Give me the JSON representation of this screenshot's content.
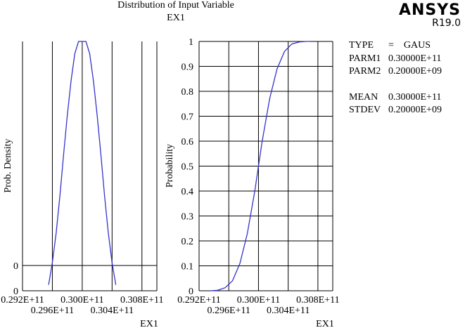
{
  "header": {
    "title": "Distribution of Input Variable",
    "subtitle": "EX1",
    "logo": "ANSYS",
    "version": "R19.0"
  },
  "stats": {
    "type": {
      "label": "TYPE",
      "value": "=    GAUS"
    },
    "parm1": {
      "label": "PARM1",
      "value": "0.30000E+11"
    },
    "parm2": {
      "label": "PARM2",
      "value": "0.20000E+09"
    },
    "mean": {
      "label": "MEAN",
      "value": "0.30000E+11"
    },
    "stdev": {
      "label": "STDEV",
      "value": "0.20000E+09"
    }
  },
  "chart_data": [
    {
      "type": "line",
      "title": "",
      "xlabel": "EX1",
      "ylabel": "Prob. Density",
      "xlim": [
        29200000000.0,
        31000000000.0
      ],
      "ylim": [
        0,
        1
      ],
      "x_tick_labels": [
        "0.292E+11",
        "0.296E+11",
        "0.300E+11",
        "0.304E+11",
        "0.308E+11"
      ],
      "y_tick_labels": [
        "0",
        "0"
      ],
      "series": [
        {
          "color": "#3333cc",
          "x": [
            29550000000.0,
            29600000000.0,
            29650000000.0,
            29700000000.0,
            29750000000.0,
            29800000000.0,
            29850000000.0,
            29900000000.0,
            29950000000.0,
            30000000000.0,
            30050000000.0,
            30100000000.0,
            30150000000.0,
            30200000000.0,
            30250000000.0,
            30300000000.0,
            30350000000.0,
            30400000000.0,
            30450000000.0
          ],
          "y": [
            0.01,
            0.1,
            0.22,
            0.37,
            0.54,
            0.7,
            0.84,
            0.95,
            1.0,
            1.0,
            1.0,
            0.95,
            0.84,
            0.7,
            0.54,
            0.37,
            0.22,
            0.1,
            0.01
          ]
        }
      ],
      "grid": "vertical"
    },
    {
      "type": "line",
      "title": "",
      "xlabel": "EX1",
      "ylabel": "Probability",
      "xlim": [
        29200000000.0,
        31000000000.0
      ],
      "ylim": [
        0,
        1
      ],
      "x_tick_labels": [
        "0.292E+11",
        "0.296E+11",
        "0.300E+11",
        "0.304E+11",
        "0.308E+11"
      ],
      "y_ticks": [
        0,
        0.1,
        0.2,
        0.3,
        0.4,
        0.5,
        0.6,
        0.7,
        0.8,
        0.9,
        1
      ],
      "series": [
        {
          "color": "#3333cc",
          "x": [
            29350000000.0,
            29450000000.0,
            29550000000.0,
            29650000000.0,
            29750000000.0,
            29850000000.0,
            29950000000.0,
            30000000000.0,
            30050000000.0,
            30150000000.0,
            30250000000.0,
            30350000000.0,
            30450000000.0,
            30550000000.0,
            30650000000.0,
            30700000000.0
          ],
          "y": [
            0.0,
            0.002,
            0.012,
            0.04,
            0.11,
            0.23,
            0.4,
            0.5,
            0.6,
            0.77,
            0.89,
            0.96,
            0.99,
            0.998,
            1.0,
            1.0
          ]
        }
      ],
      "grid": "both"
    }
  ]
}
